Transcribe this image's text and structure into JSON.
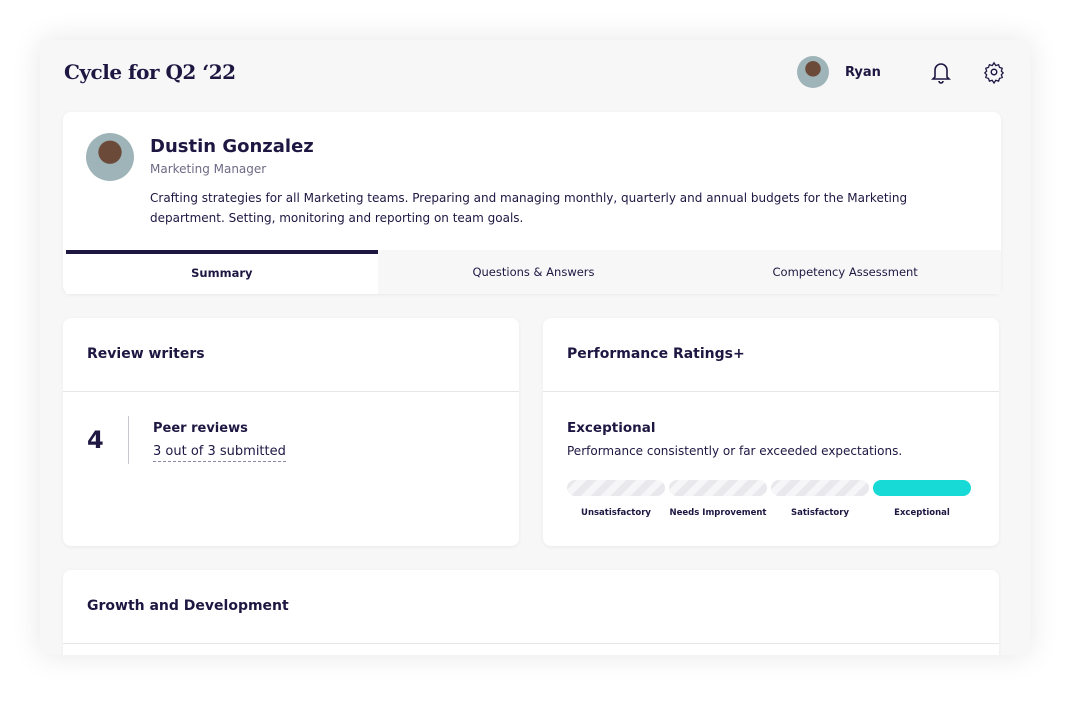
{
  "header": {
    "title": "Cycle for Q2 ‘22",
    "user_name": "Ryan"
  },
  "profile": {
    "name": "Dustin Gonzalez",
    "role": "Marketing Manager",
    "description": "Crafting strategies for all Marketing teams. Preparing and managing monthly, quarterly and annual budgets for the Marketing department. Setting, monitoring and reporting on team goals."
  },
  "tabs": [
    {
      "label": "Summary",
      "active": true
    },
    {
      "label": "Questions & Answers"
    },
    {
      "label": "Competency Assessment"
    }
  ],
  "review_writers": {
    "title": "Review writers",
    "count": "4",
    "type": "Peer reviews",
    "status": "3 out of 3 submitted"
  },
  "performance": {
    "title": "Performance Ratings+",
    "rating": "Exceptional",
    "description": "Performance consistently or far exceeded expectations.",
    "levels": [
      "Unsatisfactory",
      "Needs Improvement",
      "Satisfactory",
      "Exceptional"
    ],
    "selected_index": 3,
    "accent": "#17d9d6"
  },
  "growth": {
    "title": "Growth and Development"
  }
}
